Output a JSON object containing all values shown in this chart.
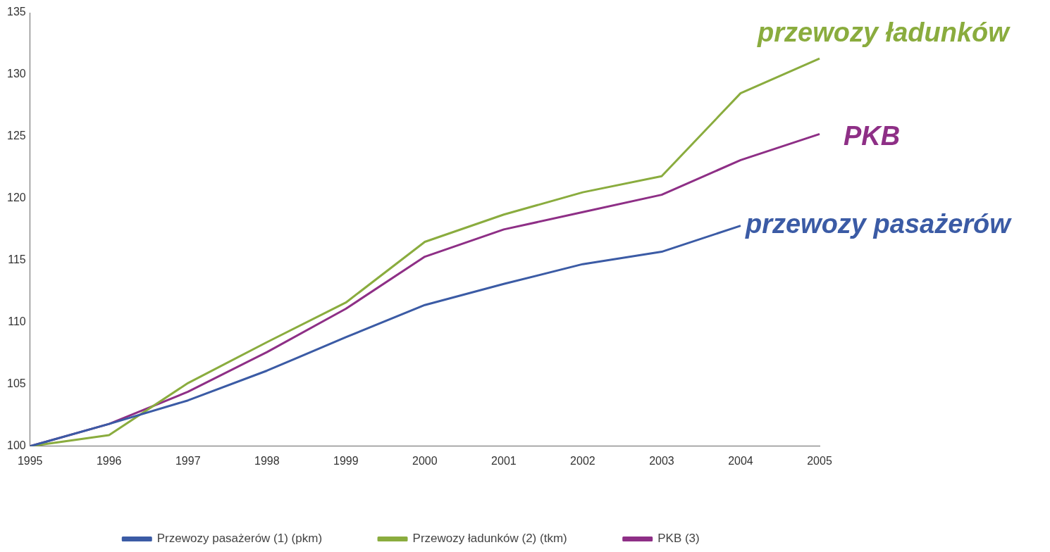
{
  "chart_data": {
    "type": "line",
    "categories": [
      "1995",
      "1996",
      "1997",
      "1998",
      "1999",
      "2000",
      "2001",
      "2002",
      "2003",
      "2004",
      "2005"
    ],
    "series": [
      {
        "name": "Przewozy pasażerów (1) (pkm)",
        "color": "#3b5ba5",
        "values": [
          100,
          101.8,
          103.7,
          106.1,
          108.8,
          111.4,
          113.1,
          114.7,
          115.7,
          117.8,
          null
        ]
      },
      {
        "name": "Przewozy ładunków (2) (tkm)",
        "color": "#8aac3e",
        "values": [
          100,
          100.9,
          105.1,
          108.4,
          111.6,
          116.5,
          118.7,
          120.5,
          121.8,
          128.5,
          131.3
        ]
      },
      {
        "name": "PKB (3)",
        "color": "#8e2f86",
        "values": [
          100,
          101.8,
          104.4,
          107.6,
          111.1,
          115.3,
          117.5,
          118.9,
          120.3,
          123.1,
          125.2
        ]
      }
    ],
    "ylim": [
      100,
      135
    ],
    "yticks": [
      100,
      105,
      110,
      115,
      120,
      125,
      130,
      135
    ],
    "grid": false,
    "legend": "bottom",
    "marker": "none",
    "line_style": "solid",
    "annotations": [
      "przewozy pasażerów",
      "przewozy ładunków",
      "PKB"
    ]
  }
}
